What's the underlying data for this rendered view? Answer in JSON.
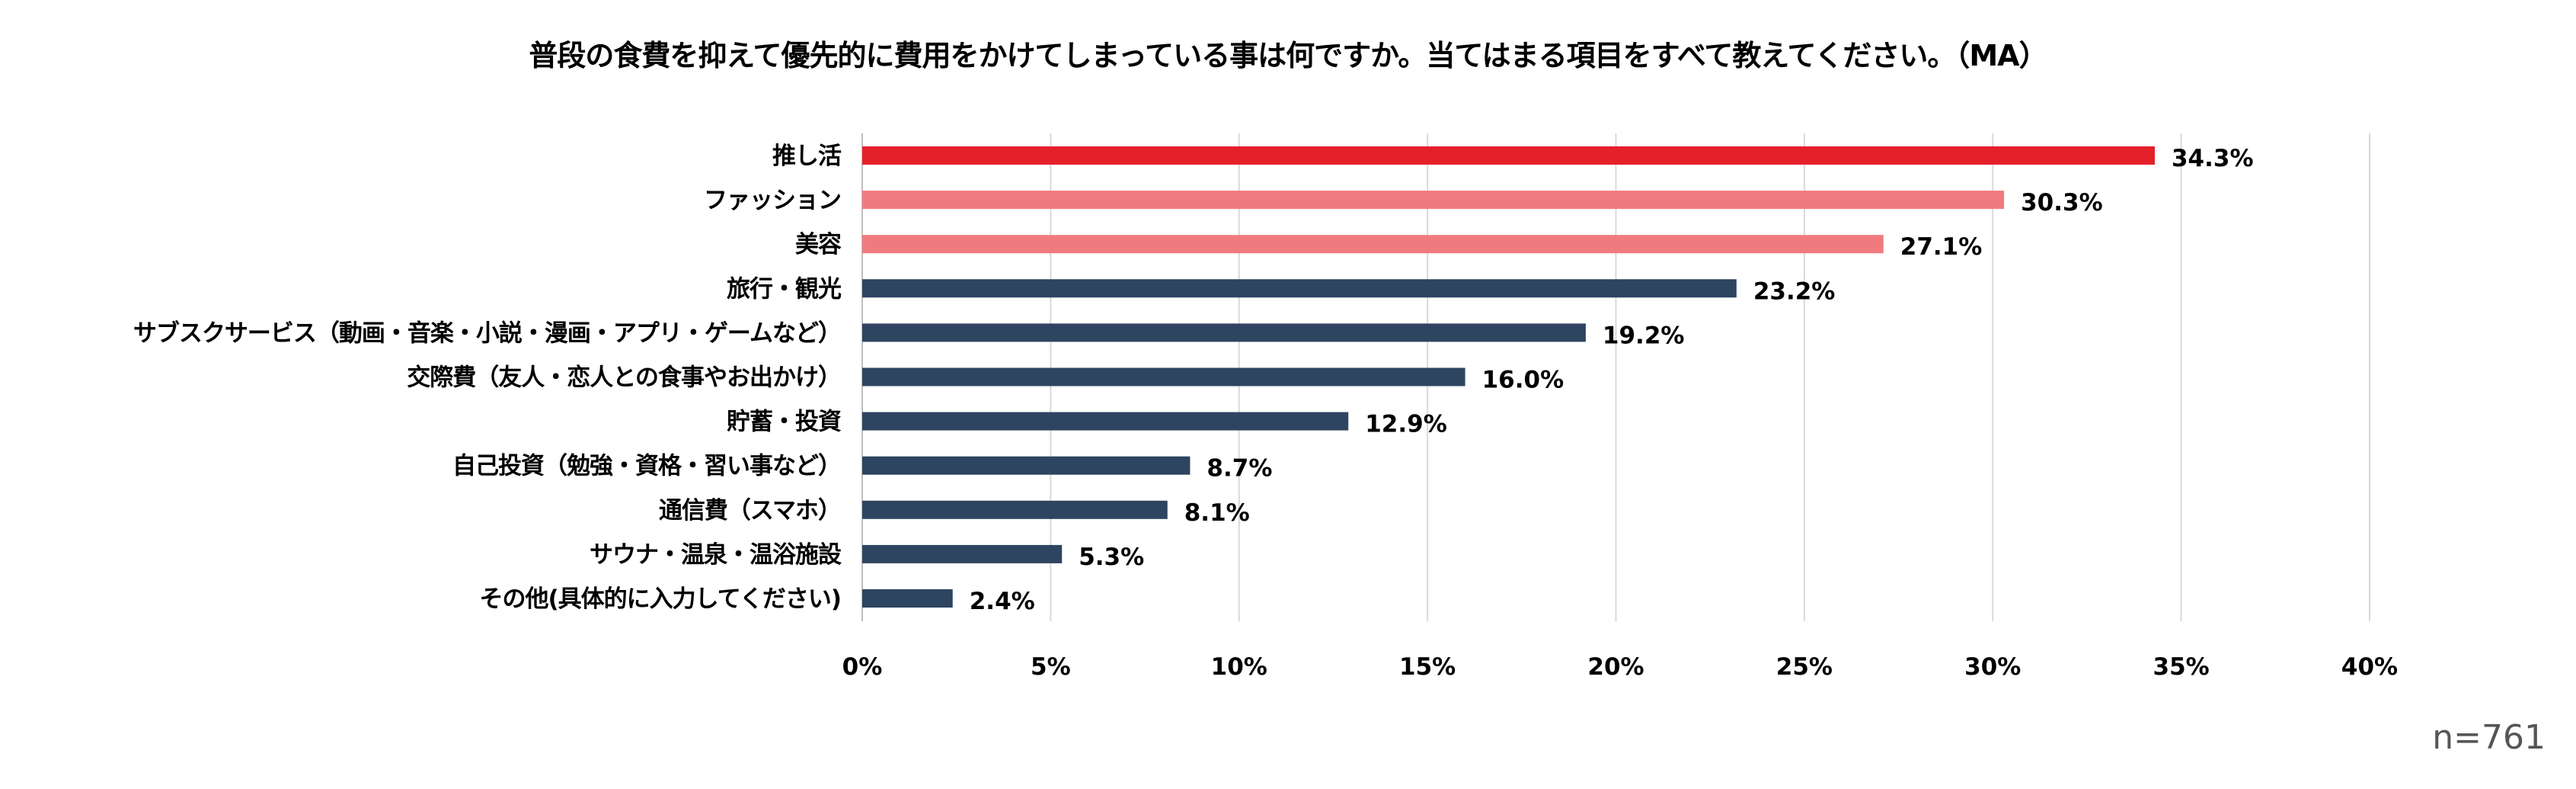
{
  "chart_data": {
    "type": "bar",
    "orientation": "horizontal",
    "title": "普段の食費を抑えて優先的に費用をかけてしまっている事は何ですか。当てはまる項目をすべて教えてください。（MA）",
    "categories": [
      "推し活",
      "ファッション",
      "美容",
      "旅行・観光",
      "サブスクサービス（動画・音楽・小説・漫画・アプリ・ゲームなど）",
      "交際費（友人・恋人との食事やお出かけ）",
      "貯蓄・投資",
      "自己投資（勉強・資格・習い事など）",
      "通信費（スマホ）",
      "サウナ・温泉・温浴施設",
      "その他(具体的に入力してください)"
    ],
    "values": [
      34.3,
      30.3,
      27.1,
      23.2,
      19.2,
      16.0,
      12.9,
      8.7,
      8.1,
      5.3,
      2.4
    ],
    "value_labels": [
      "34.3%",
      "30.3%",
      "27.1%",
      "23.2%",
      "19.2%",
      "16.0%",
      "12.9%",
      "8.7%",
      "8.1%",
      "5.3%",
      "2.4%"
    ],
    "bar_colors": [
      "#e4202a",
      "#f07b7e",
      "#f07b7e",
      "#2e4561",
      "#2e4561",
      "#2e4561",
      "#2e4561",
      "#2e4561",
      "#2e4561",
      "#2e4561",
      "#2e4561"
    ],
    "xlim": [
      0,
      40
    ],
    "xticks": [
      0,
      5,
      10,
      15,
      20,
      25,
      30,
      35,
      40
    ],
    "xtick_labels": [
      "0%",
      "5%",
      "10%",
      "15%",
      "20%",
      "25%",
      "30%",
      "35%",
      "40%"
    ],
    "grid": true,
    "note": "n=761"
  }
}
